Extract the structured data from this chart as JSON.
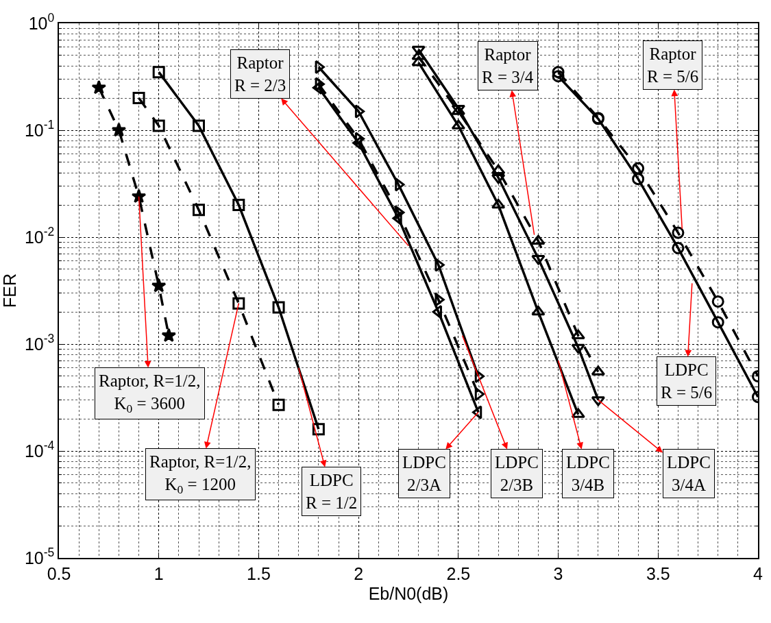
{
  "chart_data": {
    "type": "line",
    "xlabel": "Eb/N0(dB)",
    "ylabel": "FER",
    "log": "y",
    "grid": true,
    "xlim": [
      0.5,
      4
    ],
    "xticks": [
      0.5,
      1,
      1.5,
      2,
      2.5,
      3,
      3.5,
      4
    ],
    "ylim": [
      1e-05,
      1
    ],
    "yticks": [
      {
        "value": 1,
        "label": "10$^{0}$"
      },
      {
        "value": 0.1,
        "label": "10$^{-1}$"
      },
      {
        "value": 0.01,
        "label": "10$^{-2}$"
      },
      {
        "value": 0.001,
        "label": "10$^{-3}$"
      },
      {
        "value": 0.0001,
        "label": "10$^{-4}$"
      },
      {
        "value": 1e-05,
        "label": "10$^{-5}$"
      }
    ],
    "series": [
      {
        "color": "#000000",
        "line_style": "dashed",
        "marker": "star",
        "x": [
          0.7,
          0.8,
          0.9,
          1.0,
          1.05
        ],
        "values": [
          0.25,
          0.1,
          0.024,
          0.0035,
          0.0012
        ]
      },
      {
        "color": "#000000",
        "line_style": "dashed",
        "marker": "square",
        "x": [
          0.9,
          1.0,
          1.2,
          1.4,
          1.6
        ],
        "values": [
          0.2,
          0.11,
          0.018,
          0.0024,
          0.00027
        ]
      },
      {
        "color": "#000000",
        "line_style": "solid",
        "marker": "square",
        "x": [
          1.0,
          1.2,
          1.4,
          1.6,
          1.8
        ],
        "values": [
          0.35,
          0.11,
          0.02,
          0.0022,
          0.00016
        ]
      },
      {
        "color": "#000000",
        "line_style": "solid",
        "marker": "triangle-right",
        "x": [
          1.8,
          2.0,
          2.2,
          2.4,
          2.6
        ],
        "values": [
          0.39,
          0.15,
          0.031,
          0.0055,
          0.0005
        ]
      },
      {
        "color": "#000000",
        "line_style": "dashed",
        "marker": "triangle-right",
        "x": [
          1.8,
          2.0,
          2.2,
          2.4,
          2.6
        ],
        "values": [
          0.27,
          0.083,
          0.017,
          0.0026,
          0.00034
        ]
      },
      {
        "color": "#000000",
        "line_style": "solid",
        "marker": "triangle-left",
        "x": [
          1.8,
          2.0,
          2.2,
          2.4,
          2.6
        ],
        "values": [
          0.25,
          0.076,
          0.015,
          0.002,
          0.00023
        ]
      },
      {
        "color": "#000000",
        "line_style": "solid",
        "marker": "triangle-down",
        "x": [
          2.3,
          2.5,
          2.7,
          2.9,
          3.1,
          3.2
        ],
        "values": [
          0.57,
          0.16,
          0.036,
          0.0063,
          0.00093,
          0.0003
        ]
      },
      {
        "color": "#000000",
        "line_style": "dashed",
        "marker": "triangle",
        "x": [
          2.3,
          2.5,
          2.7,
          2.9,
          3.1,
          3.2
        ],
        "values": [
          0.49,
          0.15,
          0.042,
          0.0092,
          0.0012,
          0.00055
        ]
      },
      {
        "color": "#000000",
        "line_style": "solid",
        "marker": "triangle",
        "x": [
          2.3,
          2.5,
          2.7,
          2.9,
          3.1
        ],
        "values": [
          0.43,
          0.11,
          0.02,
          0.002,
          0.00022
        ]
      },
      {
        "color": "#000000",
        "line_style": "dashed",
        "marker": "circle",
        "x": [
          3.0,
          3.2,
          3.4,
          3.6,
          3.8,
          4.0
        ],
        "values": [
          0.35,
          0.13,
          0.044,
          0.011,
          0.0025,
          0.0005
        ]
      },
      {
        "color": "#000000",
        "line_style": "solid",
        "marker": "circle",
        "x": [
          3.0,
          3.2,
          3.4,
          3.6,
          3.8,
          4.0
        ],
        "values": [
          0.32,
          0.128,
          0.035,
          0.0079,
          0.0016,
          0.00032
        ]
      }
    ],
    "annotations": [
      {
        "text": "Raptor, R=1/2,\nK$_{0}$ = 3600",
        "x": 0.9,
        "y": 0.024
      },
      {
        "text": "Raptor, R=1/2,\nK$_{0}$ = 1200",
        "x": 1.4,
        "y": 0.0024
      },
      {
        "text": "LDPC\nR = 1/2",
        "x": 1.7,
        "y": 0.0006
      },
      {
        "text": "LDPC\n2/3A",
        "x": 2.6,
        "y": 0.00023
      },
      {
        "text": "LDPC\n2/3B",
        "x": 2.52,
        "y": 0.0012
      },
      {
        "text": "LDPC\n3/4B",
        "x": 3.0,
        "y": 0.0007
      },
      {
        "text": "LDPC\n3/4A",
        "x": 3.2,
        "y": 0.0003
      },
      {
        "text": "LDPC\nR = 5/6",
        "x": 3.67,
        "y": 0.0037
      },
      {
        "text": "Raptor\nR = 5/6",
        "x": 3.62,
        "y": 0.012
      },
      {
        "text": "Raptor\nR = 3/4",
        "x": 2.88,
        "y": 0.0105
      },
      {
        "text": "Raptor\nR = 2/3",
        "x": 2.25,
        "y": 0.0083
      }
    ]
  }
}
